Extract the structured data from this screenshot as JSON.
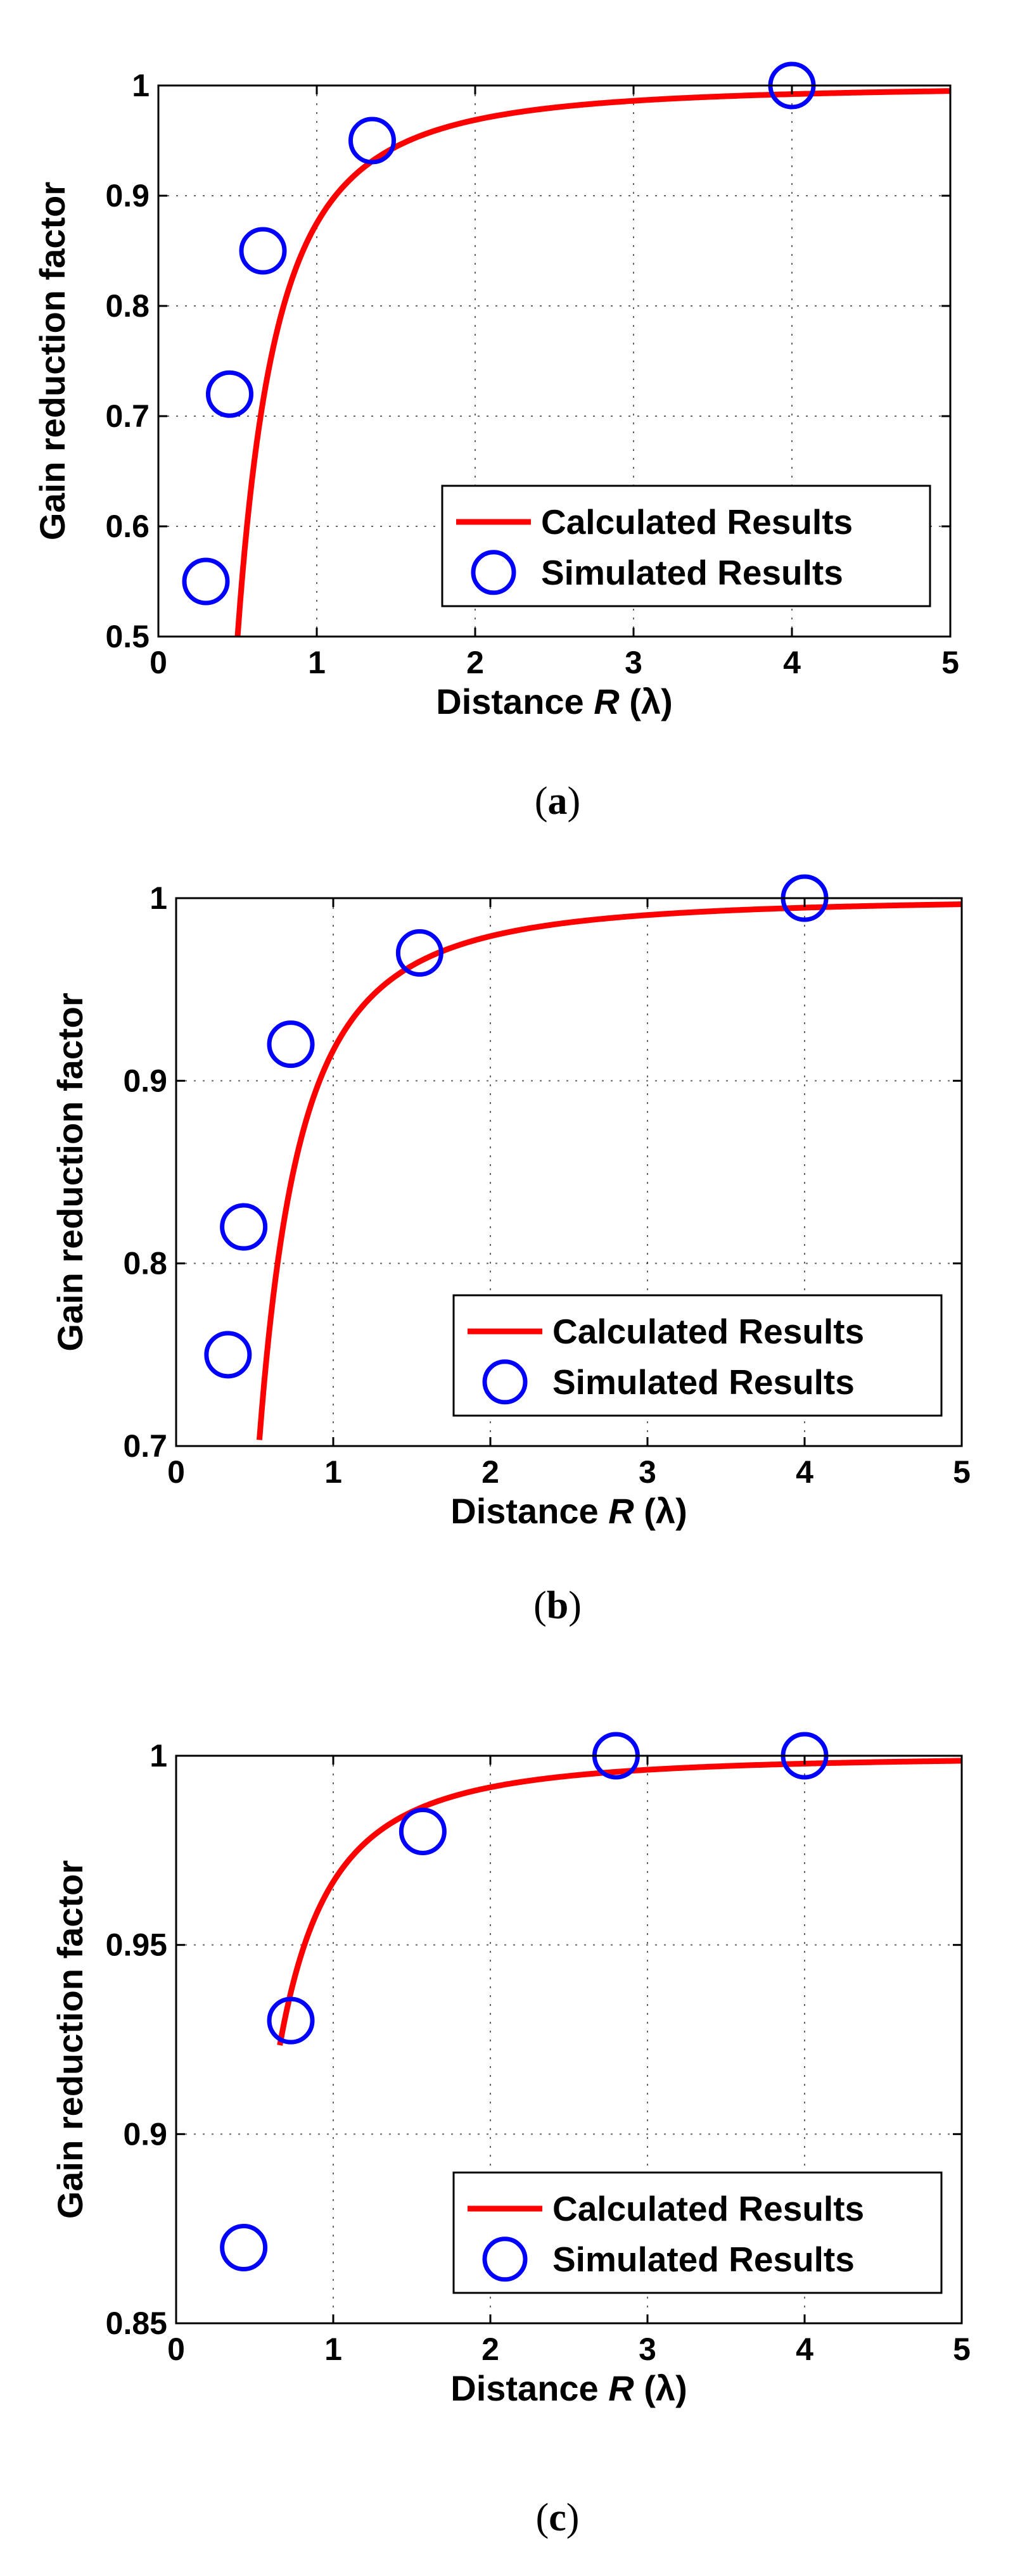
{
  "chart_data": [
    {
      "type": "line",
      "panel": "a",
      "caption": {
        "open": "(",
        "letter": "a",
        "close": ")"
      },
      "xlabel": {
        "prefix": "Distance ",
        "var": "R",
        "suffix": " (λ)"
      },
      "ylabel": "Gain reduction factor",
      "xlim": [
        0,
        5
      ],
      "ylim": [
        0.5,
        1
      ],
      "xticks": [
        0,
        1,
        2,
        3,
        4,
        5
      ],
      "yticks": [
        0.5,
        0.6,
        0.7,
        0.8,
        0.9,
        1
      ],
      "ytick_labels": [
        "0.5",
        "0.6",
        "0.7",
        "0.8",
        "0.9",
        "1"
      ],
      "grid": true,
      "legend_position": "lower-right",
      "series": [
        {
          "name": "Calculated Results",
          "style": "line",
          "color": "#ff0000",
          "function": "1 - 1/(8*R^2)",
          "x_start": 0.5,
          "x_end": 5
        },
        {
          "name": "Simulated Results",
          "style": "marker",
          "color": "#0000ff",
          "x": [
            0.3,
            0.45,
            0.66,
            1.35,
            4.0
          ],
          "y": [
            0.55,
            0.72,
            0.85,
            0.95,
            1.0
          ]
        }
      ]
    },
    {
      "type": "line",
      "panel": "b",
      "caption": {
        "open": "(",
        "letter": "b",
        "close": ")"
      },
      "xlabel": {
        "prefix": "Distance ",
        "var": "R",
        "suffix": " (λ)"
      },
      "ylabel": "Gain reduction factor",
      "xlim": [
        0,
        5
      ],
      "ylim": [
        0.7,
        1
      ],
      "xticks": [
        0,
        1,
        2,
        3,
        4,
        5
      ],
      "yticks": [
        0.7,
        0.8,
        0.9,
        1
      ],
      "ytick_labels": [
        "0.7",
        "0.8",
        "0.9",
        "1"
      ],
      "grid": true,
      "legend_position": "lower-right",
      "series": [
        {
          "name": "Calculated Results",
          "style": "line",
          "color": "#ff0000",
          "function": "1 - 1/(12*R^2)",
          "x_start": 0.53,
          "x_end": 5
        },
        {
          "name": "Simulated Results",
          "style": "marker",
          "color": "#0000ff",
          "x": [
            0.33,
            0.43,
            0.73,
            1.55,
            4.0
          ],
          "y": [
            0.75,
            0.82,
            0.92,
            0.97,
            1.0
          ]
        }
      ]
    },
    {
      "type": "line",
      "panel": "c",
      "caption": {
        "open": "(",
        "letter": "c",
        "close": ")"
      },
      "xlabel": {
        "prefix": "Distance ",
        "var": "R",
        "suffix": " (λ)"
      },
      "ylabel": "Gain reduction factor",
      "xlim": [
        0,
        5
      ],
      "ylim": [
        0.85,
        1
      ],
      "xticks": [
        0,
        1,
        2,
        3,
        4,
        5
      ],
      "yticks": [
        0.85,
        0.9,
        0.95,
        1
      ],
      "ytick_labels": [
        "0.85",
        "0.9",
        "0.95",
        "1"
      ],
      "grid": true,
      "legend_position": "lower-right",
      "series": [
        {
          "name": "Calculated Results",
          "style": "line",
          "color": "#ff0000",
          "function": "1 - 1/(30*R^2)",
          "x_start": 0.66,
          "x_end": 5
        },
        {
          "name": "Simulated Results",
          "style": "marker",
          "color": "#0000ff",
          "x": [
            0.43,
            0.73,
            1.57,
            2.8,
            4.0
          ],
          "y": [
            0.87,
            0.93,
            0.98,
            1.0,
            1.0
          ]
        }
      ]
    }
  ]
}
